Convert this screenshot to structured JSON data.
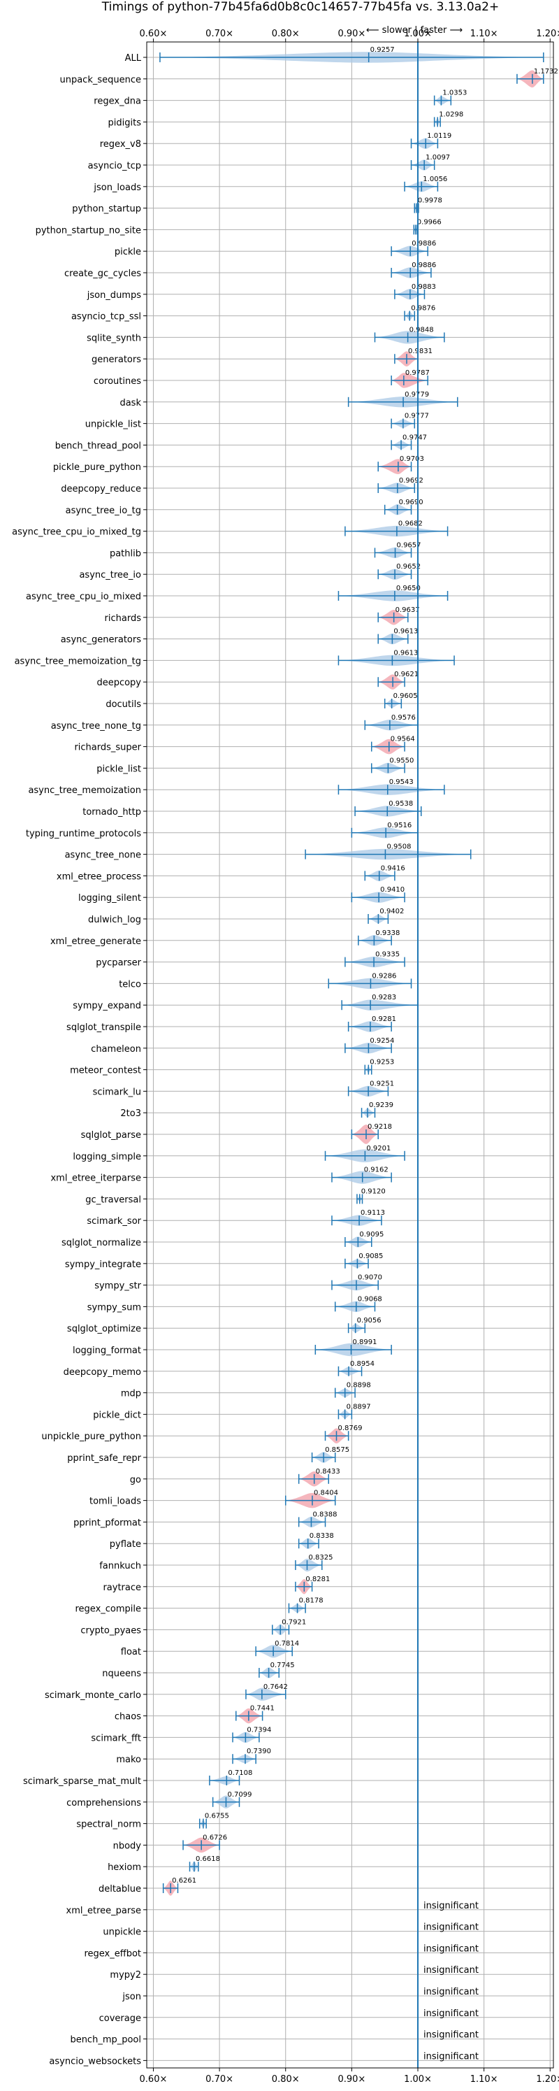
{
  "chart_data": {
    "type": "violin",
    "title": "Timings of python-77b45fa6d0b8c0c14657-77b45fa vs. 3.13.0a2+",
    "subtitle": "⟵ slower  |  faster ⟶",
    "xlim": [
      0.59,
      1.205
    ],
    "xticks": [
      0.6,
      0.7,
      0.8,
      0.9,
      1.0,
      1.1,
      1.2
    ],
    "xtick_labels": [
      "0.60×",
      "0.70×",
      "0.80×",
      "0.90×",
      "1.00×",
      "1.10×",
      "1.20×"
    ],
    "reference_line": 1.0,
    "grid": true,
    "colors": {
      "violin": "#aac8e6",
      "bar": "#1f77b4",
      "significant": "#f4aeb6",
      "reference": "#1f77b4"
    },
    "insignificant_label": "insignificant",
    "benchmarks": [
      {
        "name": "ALL",
        "value": 0.9257,
        "min": 0.61,
        "max": 1.19,
        "spread": 0.5
      },
      {
        "name": "unpack_sequence",
        "value": 1.1732,
        "min": 1.15,
        "max": 1.19,
        "spread": 0.8,
        "highlight": true
      },
      {
        "name": "regex_dna",
        "value": 1.0353,
        "min": 1.025,
        "max": 1.05,
        "spread": 0.4
      },
      {
        "name": "pidigits",
        "value": 1.0298,
        "min": 1.025,
        "max": 1.034,
        "spread": 0.35
      },
      {
        "name": "regex_v8",
        "value": 1.0119,
        "min": 0.99,
        "max": 1.03,
        "spread": 0.5
      },
      {
        "name": "asyncio_tcp",
        "value": 1.0097,
        "min": 0.99,
        "max": 1.025,
        "spread": 0.5
      },
      {
        "name": "json_loads",
        "value": 1.0056,
        "min": 0.98,
        "max": 1.03,
        "spread": 0.5
      },
      {
        "name": "python_startup",
        "value": 0.9978,
        "min": 0.995,
        "max": 1.001,
        "spread": 0.4
      },
      {
        "name": "python_startup_no_site",
        "value": 0.9966,
        "min": 0.994,
        "max": 0.999,
        "spread": 0.3
      },
      {
        "name": "pickle",
        "value": 0.9886,
        "min": 0.96,
        "max": 1.015,
        "spread": 0.5
      },
      {
        "name": "create_gc_cycles",
        "value": 0.9886,
        "min": 0.96,
        "max": 1.02,
        "spread": 0.5
      },
      {
        "name": "json_dumps",
        "value": 0.9883,
        "min": 0.965,
        "max": 1.01,
        "spread": 0.5
      },
      {
        "name": "asyncio_tcp_ssl",
        "value": 0.9876,
        "min": 0.98,
        "max": 0.995,
        "spread": 0.4
      },
      {
        "name": "sqlite_synth",
        "value": 0.9848,
        "min": 0.935,
        "max": 1.04,
        "spread": 0.6
      },
      {
        "name": "generators",
        "value": 0.9831,
        "min": 0.965,
        "max": 1.0,
        "spread": 0.7,
        "highlight": true
      },
      {
        "name": "coroutines",
        "value": 0.9787,
        "min": 0.96,
        "max": 1.015,
        "spread": 0.7,
        "highlight": true
      },
      {
        "name": "dask",
        "value": 0.9779,
        "min": 0.895,
        "max": 1.06,
        "spread": 0.5
      },
      {
        "name": "unpickle_list",
        "value": 0.9777,
        "min": 0.96,
        "max": 0.995,
        "spread": 0.4
      },
      {
        "name": "bench_thread_pool",
        "value": 0.9747,
        "min": 0.96,
        "max": 0.99,
        "spread": 0.4
      },
      {
        "name": "pickle_pure_python",
        "value": 0.9703,
        "min": 0.94,
        "max": 0.99,
        "spread": 0.7,
        "highlight": true
      },
      {
        "name": "deepcopy_reduce",
        "value": 0.9692,
        "min": 0.94,
        "max": 0.995,
        "spread": 0.5
      },
      {
        "name": "async_tree_io_tg",
        "value": 0.969,
        "min": 0.95,
        "max": 0.99,
        "spread": 0.5
      },
      {
        "name": "async_tree_cpu_io_mixed_tg",
        "value": 0.9682,
        "min": 0.89,
        "max": 1.045,
        "spread": 0.5
      },
      {
        "name": "pathlib",
        "value": 0.9657,
        "min": 0.935,
        "max": 0.99,
        "spread": 0.5
      },
      {
        "name": "async_tree_io",
        "value": 0.9652,
        "min": 0.94,
        "max": 0.99,
        "spread": 0.5
      },
      {
        "name": "async_tree_cpu_io_mixed",
        "value": 0.965,
        "min": 0.88,
        "max": 1.045,
        "spread": 0.5
      },
      {
        "name": "richards",
        "value": 0.9637,
        "min": 0.94,
        "max": 0.985,
        "spread": 0.7,
        "highlight": true
      },
      {
        "name": "async_generators",
        "value": 0.9613,
        "min": 0.94,
        "max": 0.985,
        "spread": 0.5
      },
      {
        "name": "async_tree_memoization_tg",
        "value": 0.9613,
        "min": 0.88,
        "max": 1.055,
        "spread": 0.5
      },
      {
        "name": "deepcopy",
        "value": 0.9621,
        "min": 0.94,
        "max": 0.98,
        "spread": 0.7,
        "highlight": true
      },
      {
        "name": "docutils",
        "value": 0.9605,
        "min": 0.95,
        "max": 0.975,
        "spread": 0.4
      },
      {
        "name": "async_tree_none_tg",
        "value": 0.9576,
        "min": 0.92,
        "max": 1.0,
        "spread": 0.5
      },
      {
        "name": "richards_super",
        "value": 0.9564,
        "min": 0.93,
        "max": 0.98,
        "spread": 0.7,
        "highlight": true
      },
      {
        "name": "pickle_list",
        "value": 0.955,
        "min": 0.93,
        "max": 0.98,
        "spread": 0.5
      },
      {
        "name": "async_tree_memoization",
        "value": 0.9543,
        "min": 0.88,
        "max": 1.04,
        "spread": 0.5
      },
      {
        "name": "tornado_http",
        "value": 0.9538,
        "min": 0.905,
        "max": 1.005,
        "spread": 0.5
      },
      {
        "name": "typing_runtime_protocols",
        "value": 0.9516,
        "min": 0.9,
        "max": 1.0,
        "spread": 0.5
      },
      {
        "name": "async_tree_none",
        "value": 0.9508,
        "min": 0.83,
        "max": 1.08,
        "spread": 0.5
      },
      {
        "name": "xml_etree_process",
        "value": 0.9416,
        "min": 0.92,
        "max": 0.965,
        "spread": 0.5
      },
      {
        "name": "logging_silent",
        "value": 0.941,
        "min": 0.9,
        "max": 0.98,
        "spread": 0.5
      },
      {
        "name": "dulwich_log",
        "value": 0.9402,
        "min": 0.925,
        "max": 0.955,
        "spread": 0.4
      },
      {
        "name": "xml_etree_generate",
        "value": 0.9338,
        "min": 0.91,
        "max": 0.96,
        "spread": 0.5
      },
      {
        "name": "pycparser",
        "value": 0.9335,
        "min": 0.89,
        "max": 0.98,
        "spread": 0.5
      },
      {
        "name": "telco",
        "value": 0.9286,
        "min": 0.865,
        "max": 0.99,
        "spread": 0.5
      },
      {
        "name": "sympy_expand",
        "value": 0.9283,
        "min": 0.885,
        "max": 1.0,
        "spread": 0.5
      },
      {
        "name": "sqlglot_transpile",
        "value": 0.9281,
        "min": 0.895,
        "max": 0.96,
        "spread": 0.5
      },
      {
        "name": "chameleon",
        "value": 0.9254,
        "min": 0.89,
        "max": 0.96,
        "spread": 0.5
      },
      {
        "name": "meteor_contest",
        "value": 0.9253,
        "min": 0.92,
        "max": 0.93,
        "spread": 0.3
      },
      {
        "name": "scimark_lu",
        "value": 0.9251,
        "min": 0.895,
        "max": 0.955,
        "spread": 0.5
      },
      {
        "name": "2to3",
        "value": 0.9239,
        "min": 0.915,
        "max": 0.935,
        "spread": 0.4
      },
      {
        "name": "sqlglot_parse",
        "value": 0.9218,
        "min": 0.9,
        "max": 0.94,
        "spread": 0.9,
        "highlight": true
      },
      {
        "name": "logging_simple",
        "value": 0.9201,
        "min": 0.86,
        "max": 0.98,
        "spread": 0.6
      },
      {
        "name": "xml_etree_iterparse",
        "value": 0.9162,
        "min": 0.87,
        "max": 0.96,
        "spread": 0.6
      },
      {
        "name": "gc_traversal",
        "value": 0.912,
        "min": 0.908,
        "max": 0.916,
        "spread": 0.3
      },
      {
        "name": "scimark_sor",
        "value": 0.9113,
        "min": 0.87,
        "max": 0.945,
        "spread": 0.5
      },
      {
        "name": "sqlglot_normalize",
        "value": 0.9095,
        "min": 0.89,
        "max": 0.93,
        "spread": 0.5
      },
      {
        "name": "sympy_integrate",
        "value": 0.9085,
        "min": 0.89,
        "max": 0.925,
        "spread": 0.4
      },
      {
        "name": "sympy_str",
        "value": 0.907,
        "min": 0.87,
        "max": 0.94,
        "spread": 0.5
      },
      {
        "name": "sympy_sum",
        "value": 0.9068,
        "min": 0.875,
        "max": 0.935,
        "spread": 0.5
      },
      {
        "name": "sqlglot_optimize",
        "value": 0.9056,
        "min": 0.895,
        "max": 0.92,
        "spread": 0.4
      },
      {
        "name": "logging_format",
        "value": 0.8991,
        "min": 0.845,
        "max": 0.96,
        "spread": 0.6
      },
      {
        "name": "deepcopy_memo",
        "value": 0.8954,
        "min": 0.88,
        "max": 0.915,
        "spread": 0.4
      },
      {
        "name": "mdp",
        "value": 0.8898,
        "min": 0.875,
        "max": 0.905,
        "spread": 0.4
      },
      {
        "name": "pickle_dict",
        "value": 0.8897,
        "min": 0.88,
        "max": 0.9,
        "spread": 0.4
      },
      {
        "name": "unpickle_pure_python",
        "value": 0.8769,
        "min": 0.86,
        "max": 0.895,
        "spread": 0.7,
        "highlight": true
      },
      {
        "name": "pprint_safe_repr",
        "value": 0.8575,
        "min": 0.84,
        "max": 0.875,
        "spread": 0.5
      },
      {
        "name": "go",
        "value": 0.8433,
        "min": 0.82,
        "max": 0.865,
        "spread": 0.7,
        "highlight": true
      },
      {
        "name": "tomli_loads",
        "value": 0.8404,
        "min": 0.8,
        "max": 0.875,
        "spread": 0.7,
        "highlight": true
      },
      {
        "name": "pprint_pformat",
        "value": 0.8388,
        "min": 0.82,
        "max": 0.86,
        "spread": 0.5
      },
      {
        "name": "pyflate",
        "value": 0.8338,
        "min": 0.82,
        "max": 0.85,
        "spread": 0.5
      },
      {
        "name": "fannkuch",
        "value": 0.8325,
        "min": 0.815,
        "max": 0.855,
        "spread": 0.6
      },
      {
        "name": "raytrace",
        "value": 0.8281,
        "min": 0.815,
        "max": 0.84,
        "spread": 0.7,
        "highlight": true
      },
      {
        "name": "regex_compile",
        "value": 0.8178,
        "min": 0.805,
        "max": 0.83,
        "spread": 0.4
      },
      {
        "name": "crypto_pyaes",
        "value": 0.7921,
        "min": 0.78,
        "max": 0.805,
        "spread": 0.5
      },
      {
        "name": "float",
        "value": 0.7814,
        "min": 0.755,
        "max": 0.81,
        "spread": 0.6
      },
      {
        "name": "nqueens",
        "value": 0.7745,
        "min": 0.76,
        "max": 0.79,
        "spread": 0.5
      },
      {
        "name": "scimark_monte_carlo",
        "value": 0.7642,
        "min": 0.74,
        "max": 0.8,
        "spread": 0.6
      },
      {
        "name": "chaos",
        "value": 0.7441,
        "min": 0.725,
        "max": 0.765,
        "spread": 0.7,
        "highlight": true
      },
      {
        "name": "scimark_fft",
        "value": 0.7394,
        "min": 0.72,
        "max": 0.76,
        "spread": 0.5
      },
      {
        "name": "mako",
        "value": 0.739,
        "min": 0.72,
        "max": 0.755,
        "spread": 0.4
      },
      {
        "name": "scimark_sparse_mat_mult",
        "value": 0.7108,
        "min": 0.685,
        "max": 0.73,
        "spread": 0.4
      },
      {
        "name": "comprehensions",
        "value": 0.7099,
        "min": 0.69,
        "max": 0.73,
        "spread": 0.6
      },
      {
        "name": "spectral_norm",
        "value": 0.6755,
        "min": 0.67,
        "max": 0.68,
        "spread": 0.35
      },
      {
        "name": "nbody",
        "value": 0.6726,
        "min": 0.645,
        "max": 0.7,
        "spread": 0.7,
        "highlight": true
      },
      {
        "name": "hexiom",
        "value": 0.6618,
        "min": 0.655,
        "max": 0.668,
        "spread": 0.5
      },
      {
        "name": "deltablue",
        "value": 0.6261,
        "min": 0.615,
        "max": 0.637,
        "spread": 0.7,
        "highlight": true
      },
      {
        "name": "xml_etree_parse",
        "insignificant": true
      },
      {
        "name": "unpickle",
        "insignificant": true
      },
      {
        "name": "regex_effbot",
        "insignificant": true
      },
      {
        "name": "mypy2",
        "insignificant": true
      },
      {
        "name": "json",
        "insignificant": true
      },
      {
        "name": "coverage",
        "insignificant": true
      },
      {
        "name": "bench_mp_pool",
        "insignificant": true
      },
      {
        "name": "asyncio_websockets",
        "insignificant": true
      }
    ]
  }
}
